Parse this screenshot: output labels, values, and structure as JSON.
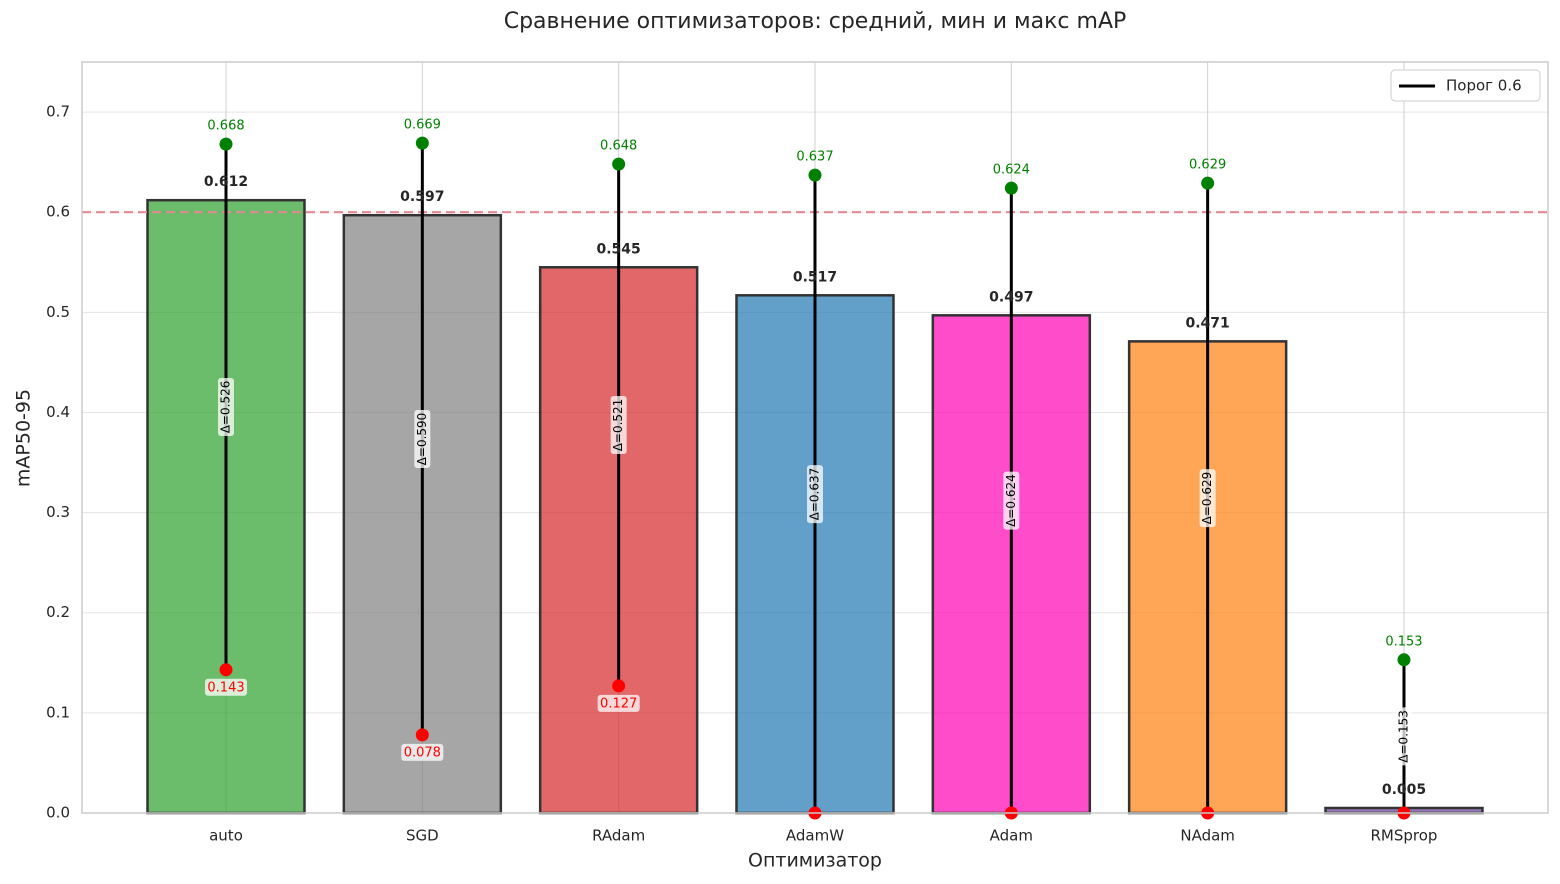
{
  "chart_data": {
    "type": "bar",
    "title": "Сравнение оптимизаторов: средний, мин и макс mAP",
    "x_label": "Оптимизатор",
    "y_label": "mAP50-95",
    "categories": [
      "auto",
      "SGD",
      "RAdam",
      "AdamW",
      "Adam",
      "NAdam",
      "RMSprop"
    ],
    "colors": [
      "#2ca02c",
      "#808080",
      "#d62728",
      "#1f77b4",
      "#ff00b4",
      "#ff7f0e",
      "#6a3d9a"
    ],
    "series": [
      {
        "name": "mean",
        "values": [
          0.612,
          0.597,
          0.545,
          0.517,
          0.497,
          0.471,
          0.005
        ]
      },
      {
        "name": "max",
        "color": "#008000",
        "values": [
          0.668,
          0.669,
          0.648,
          0.637,
          0.624,
          0.629,
          0.153
        ]
      },
      {
        "name": "min",
        "color": "#ff0000",
        "values": [
          0.143,
          0.078,
          0.127,
          0,
          0,
          0,
          0
        ]
      },
      {
        "name": "delta",
        "values": [
          0.526,
          0.59,
          0.521,
          0.637,
          0.624,
          0.629,
          0.153
        ],
        "value_labels": [
          "Δ=0.526",
          "Δ=0.590",
          "Δ=0.521",
          "Δ=0.637",
          "Δ=0.624",
          "Δ=0.629",
          "Δ=0.153"
        ]
      }
    ],
    "range_color": "#000000",
    "threshold": {
      "name": "Порог 0.6",
      "value": 0.6,
      "color": "#e08a94"
    },
    "ylim": [
      0,
      0.75
    ],
    "yticks": [
      {
        "value": 0,
        "label": "0.0"
      },
      0.1,
      0.2,
      0.3,
      0.4,
      0.5,
      0.6,
      0.7
    ],
    "grid": true,
    "legend": "upper right"
  }
}
